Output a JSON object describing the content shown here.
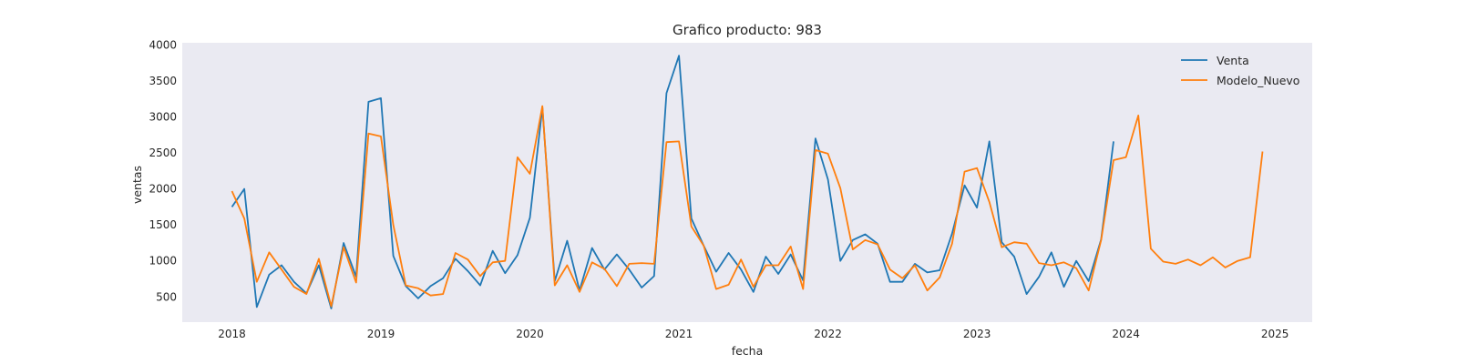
{
  "chart_data": {
    "type": "line",
    "title": "Grafico producto: 983",
    "xlabel": "fecha",
    "ylabel": "ventas",
    "x_ticks": [
      "2018",
      "2019",
      "2020",
      "2021",
      "2022",
      "2023",
      "2024",
      "2025"
    ],
    "y_ticks": [
      500,
      1000,
      1500,
      2000,
      2500,
      3000,
      3500,
      4000
    ],
    "xlim": [
      "2017-09",
      "2025-04"
    ],
    "ylim": [
      150,
      4030
    ],
    "grid": false,
    "legend_position": "top-right",
    "x_start": "2018-01",
    "x_step": "1 month",
    "series": [
      {
        "name": "Venta",
        "color": "#1f77b4",
        "values": [
          1750,
          2000,
          360,
          810,
          940,
          710,
          550,
          940,
          340,
          1250,
          780,
          3210,
          3260,
          1070,
          650,
          480,
          650,
          760,
          1030,
          860,
          660,
          1140,
          830,
          1080,
          1600,
          3130,
          720,
          1280,
          590,
          1180,
          880,
          1090,
          880,
          630,
          790,
          3330,
          3850,
          1590,
          1210,
          850,
          1110,
          880,
          570,
          1060,
          820,
          1090,
          730,
          2700,
          2130,
          1000,
          1290,
          1370,
          1240,
          710,
          710,
          960,
          840,
          870,
          1380,
          2050,
          1740,
          2660,
          1260,
          1060,
          540,
          780,
          1120,
          640,
          1000,
          720,
          1300,
          2660
        ]
      },
      {
        "name": "Modelo_Nuevo",
        "color": "#ff7f0e",
        "values": [
          1970,
          1590,
          710,
          1120,
          880,
          640,
          540,
          1030,
          370,
          1190,
          700,
          2770,
          2730,
          1500,
          660,
          620,
          520,
          540,
          1110,
          1020,
          790,
          980,
          1000,
          2440,
          2210,
          3150,
          660,
          940,
          570,
          980,
          890,
          650,
          960,
          970,
          960,
          2650,
          2660,
          1480,
          1210,
          610,
          670,
          1020,
          640,
          940,
          940,
          1200,
          610,
          2540,
          2490,
          2010,
          1160,
          1290,
          1230,
          880,
          760,
          940,
          590,
          770,
          1240,
          2240,
          2290,
          1820,
          1190,
          1260,
          1240,
          970,
          940,
          980,
          900,
          590,
          1290,
          2400,
          2440,
          3020,
          1170,
          990,
          960,
          1020,
          940,
          1050,
          910,
          1000,
          1050,
          2520
        ]
      }
    ]
  }
}
